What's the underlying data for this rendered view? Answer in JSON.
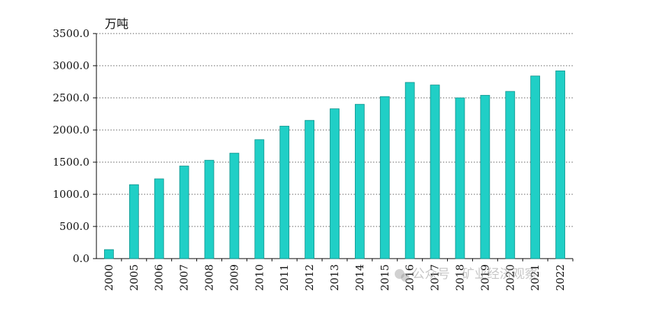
{
  "chart_data": {
    "type": "bar",
    "title": "",
    "xlabel": "",
    "ylabel": "万吨",
    "ylim": [
      0,
      3500
    ],
    "yticks": [
      "0.0",
      "500.0",
      "1000.0",
      "1500.0",
      "2000.0",
      "2500.0",
      "3000.0",
      "3500.0"
    ],
    "grid": true,
    "legend": "none",
    "bar_color": "#20cfc6",
    "bar_edge_color": "#0d8f89",
    "categories": [
      "2000",
      "2005",
      "2006",
      "2007",
      "2008",
      "2009",
      "2010",
      "2011",
      "2012",
      "2013",
      "2014",
      "2015",
      "2016",
      "2017",
      "2018",
      "2019",
      "2020",
      "2021",
      "2022"
    ],
    "values": [
      140,
      1150,
      1240,
      1440,
      1530,
      1640,
      1850,
      2060,
      2150,
      2330,
      2400,
      2520,
      2740,
      2700,
      2500,
      2540,
      2600,
      2840,
      2920
    ]
  },
  "watermark": {
    "icon": "wechat-icon",
    "text": "公众号 · 矿业经济观察"
  }
}
